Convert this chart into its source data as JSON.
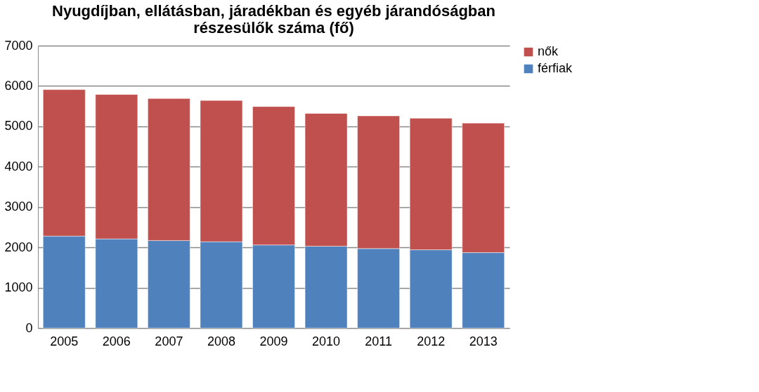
{
  "chart_data": {
    "type": "bar",
    "stacked": true,
    "title": [
      "Nyugdíjban, ellátásban, járadékban és egyéb járandóságban",
      "részesülők száma (fő)"
    ],
    "categories": [
      "2005",
      "2006",
      "2007",
      "2008",
      "2009",
      "2010",
      "2011",
      "2012",
      "2013"
    ],
    "series": [
      {
        "name": "férfiak",
        "color": "#4f81bd",
        "values": [
          2280,
          2210,
          2170,
          2140,
          2060,
          2030,
          1970,
          1940,
          1870
        ]
      },
      {
        "name": "nők",
        "color": "#c0504d",
        "values": [
          3630,
          3580,
          3520,
          3500,
          3430,
          3290,
          3290,
          3260,
          3210
        ]
      }
    ],
    "ylim": [
      0,
      7000
    ],
    "yticks": [
      0,
      1000,
      2000,
      3000,
      4000,
      5000,
      6000,
      7000
    ],
    "grid": "y",
    "legend": "right"
  }
}
